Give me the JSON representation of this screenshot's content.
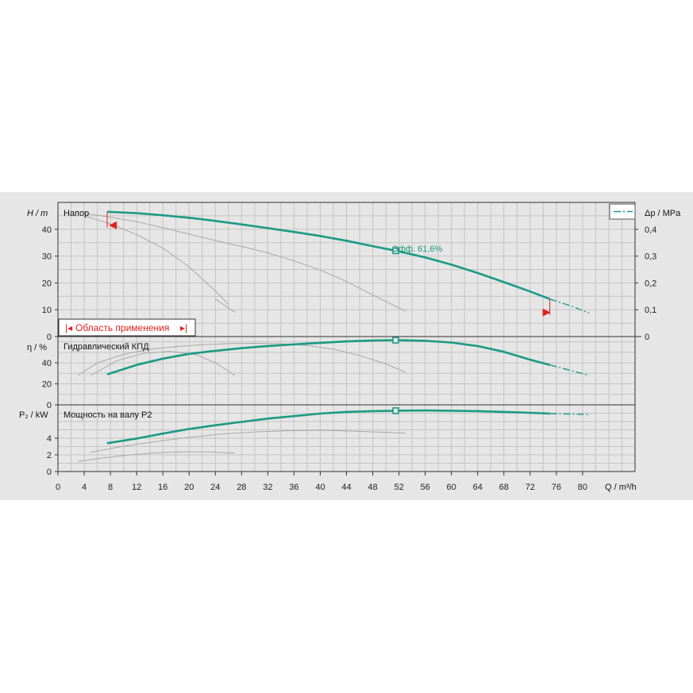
{
  "colors": {
    "main": "#1a9a85",
    "ghost": "#a8a8a8",
    "grid": "#c4c4c4",
    "accent": "#e0221e",
    "panel_bg": "#e6e6e6"
  },
  "labels": {
    "head_title": "Напор",
    "eff_title": "Гидравлический КПД",
    "power_title": "Мощность на валу P2",
    "head_unit": "H / m",
    "eff_unit": "η / %",
    "power_unit": "P₂ / kW",
    "dp_unit": "Δp / MPa",
    "q_unit": "Q / m³/h",
    "range": "Область применения",
    "eff_annotation": "Эфф.  61,6%"
  },
  "chart_data": {
    "type": "line",
    "x": {
      "label": "Q / m³/h",
      "lim": [
        0,
        88
      ],
      "ticks": [
        0,
        4,
        8,
        12,
        16,
        20,
        24,
        28,
        32,
        36,
        40,
        44,
        48,
        52,
        56,
        60,
        64,
        68,
        72,
        76,
        80
      ]
    },
    "panels": [
      {
        "id": "head",
        "title": "Напор",
        "ylabel": "H / m",
        "ylim": [
          0,
          50
        ],
        "yticks": [
          0,
          10,
          20,
          30,
          40
        ],
        "right_axis": {
          "label": "Δp / MPa",
          "ticks": [
            0,
            0.1,
            0.2,
            0.3,
            0.4
          ],
          "tick_labels": [
            "0",
            "0,1",
            "0,2",
            "0,3",
            "0,4"
          ]
        },
        "main": {
          "x": [
            7.5,
            12,
            16,
            20,
            24,
            28,
            32,
            36,
            40,
            44,
            48,
            51.5,
            56,
            60,
            64,
            68,
            72,
            75
          ],
          "y": [
            46.5,
            46,
            45.2,
            44.3,
            43.1,
            41.8,
            40.4,
            39,
            37.5,
            35.7,
            33.7,
            32,
            29.5,
            26.8,
            23.7,
            20.3,
            16.8,
            14
          ]
        },
        "extension": {
          "x": [
            75,
            78,
            81
          ],
          "y": [
            14,
            11.6,
            8.8
          ]
        },
        "ghosts": [
          {
            "x": [
              4,
              8,
              12,
              16,
              20,
              24,
              28,
              32,
              36,
              40,
              44,
              48,
              53
            ],
            "y": [
              46,
              44.5,
              42.8,
              40.6,
              38.2,
              35.8,
              33.6,
              31.2,
              28.2,
              24.8,
              20.5,
              15.5,
              9.5
            ]
          },
          {
            "x": [
              4,
              8,
              12,
              16,
              20,
              24,
              26
            ],
            "y": [
              45,
              42,
              38,
              33,
              26,
              17,
              12
            ]
          },
          {
            "x": [
              24,
              27
            ],
            "y": [
              14,
              9
            ]
          }
        ],
        "duty_point": {
          "x": 51.5,
          "y": 32
        },
        "annotation": "Эфф.  61,6%",
        "range": {
          "qmin": 8,
          "qmax": 75
        }
      },
      {
        "id": "eff",
        "title": "Гидравлический КПД",
        "ylabel": "η / %",
        "ylim": [
          0,
          65
        ],
        "yticks": [
          0,
          20,
          40
        ],
        "main": {
          "x": [
            7.5,
            12,
            16,
            20,
            24,
            28,
            32,
            36,
            40,
            44,
            48,
            51.5,
            56,
            60,
            64,
            68,
            72,
            75
          ],
          "y": [
            29,
            38,
            44,
            48.5,
            51.5,
            54,
            56,
            57.6,
            59,
            60.4,
            61.3,
            61.6,
            61,
            59.3,
            56,
            50.5,
            43,
            38
          ]
        },
        "extension": {
          "x": [
            75,
            78,
            81
          ],
          "y": [
            38,
            33,
            28
          ]
        },
        "ghosts": [
          {
            "x": [
              3,
              6,
              10,
              14,
              18,
              22,
              26,
              30,
              34,
              38,
              42,
              46,
              50,
              53
            ],
            "y": [
              28,
              40,
              48,
              53,
              55.5,
              57.2,
              58.3,
              58.6,
              58.2,
              56.5,
              53,
              47,
              39,
              31
            ]
          },
          {
            "x": [
              5,
              9,
              13,
              17,
              21,
              24,
              27
            ],
            "y": [
              28,
              42,
              49,
              51,
              48,
              40,
              28
            ]
          }
        ],
        "duty_point": {
          "x": 51.5,
          "y": 61.6
        }
      },
      {
        "id": "power",
        "title": "Мощность на валу P2",
        "ylabel": "P₂ / kW",
        "ylim": [
          0,
          8
        ],
        "yticks": [
          0,
          2,
          4
        ],
        "main": {
          "x": [
            7.5,
            12,
            16,
            20,
            24,
            28,
            32,
            36,
            40,
            44,
            48,
            51.5,
            56,
            60,
            64,
            68,
            72,
            75
          ],
          "y": [
            3.4,
            3.95,
            4.55,
            5.1,
            5.55,
            5.95,
            6.35,
            6.65,
            6.95,
            7.15,
            7.25,
            7.3,
            7.32,
            7.3,
            7.25,
            7.15,
            7.05,
            6.95
          ]
        },
        "extension": {
          "x": [
            75,
            78,
            81
          ],
          "y": [
            6.95,
            6.9,
            6.85
          ]
        },
        "ghosts": [
          {
            "x": [
              5,
              10,
              15,
              20,
              25,
              30,
              35,
              40,
              45,
              50,
              53
            ],
            "y": [
              2.3,
              3.05,
              3.6,
              4.1,
              4.5,
              4.75,
              4.9,
              4.95,
              4.85,
              4.7,
              4.6
            ]
          },
          {
            "x": [
              3,
              7,
              11,
              15,
              19,
              23,
              27
            ],
            "y": [
              1.2,
              1.65,
              2.0,
              2.25,
              2.35,
              2.35,
              2.2
            ]
          }
        ],
        "duty_point": {
          "x": 51.5,
          "y": 7.3
        }
      }
    ]
  }
}
